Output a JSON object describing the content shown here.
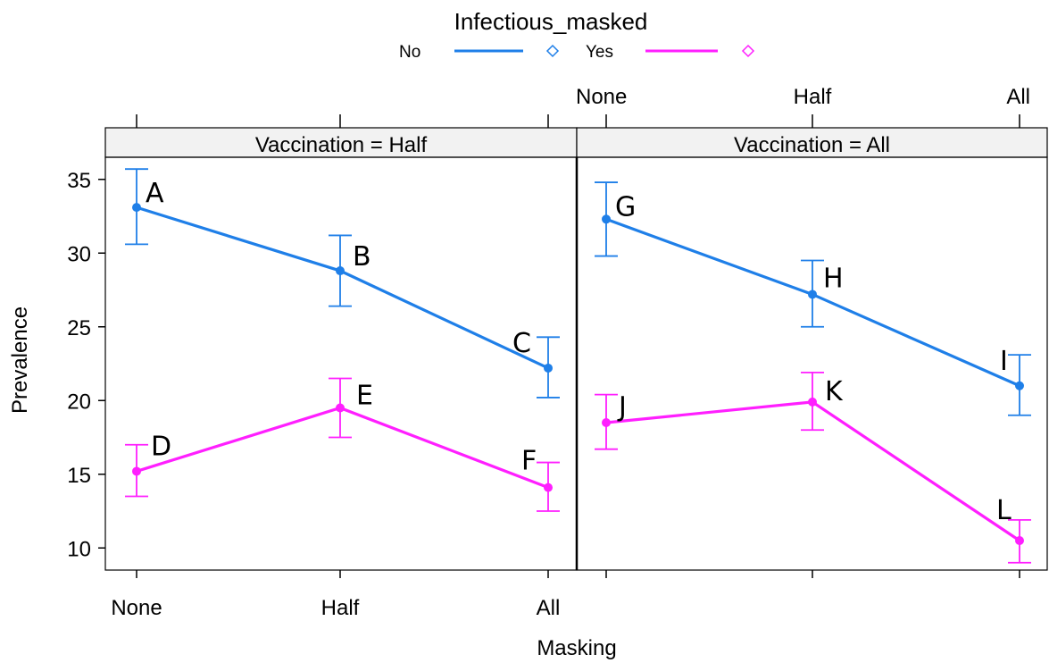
{
  "chart_data": {
    "type": "line",
    "legend": {
      "title": "Infectious_masked",
      "placement": "top",
      "entries": [
        {
          "label": "No",
          "color": "#1f7fe8"
        },
        {
          "label": "Yes",
          "color": "#ff1fff"
        }
      ]
    },
    "xlabel": "Masking",
    "ylabel": "Prevalence",
    "categories": [
      "None",
      "Half",
      "All"
    ],
    "ylim": [
      8.5,
      36.5
    ],
    "yticks": [
      10,
      15,
      20,
      25,
      30,
      35
    ],
    "panels": [
      {
        "strip": "Vaccination = Half",
        "series": [
          {
            "name": "No",
            "color": "#1f7fe8",
            "values": [
              33.1,
              28.8,
              22.2
            ],
            "lower": [
              30.6,
              26.4,
              20.2
            ],
            "upper": [
              35.7,
              31.2,
              24.3
            ],
            "labels": [
              "A",
              "B",
              "C"
            ]
          },
          {
            "name": "Yes",
            "color": "#ff1fff",
            "values": [
              15.2,
              19.5,
              14.1
            ],
            "lower": [
              13.5,
              17.5,
              12.5
            ],
            "upper": [
              17.0,
              21.5,
              15.8
            ],
            "labels": [
              "D",
              "E",
              "F"
            ]
          }
        ]
      },
      {
        "strip": "Vaccination = All",
        "series": [
          {
            "name": "No",
            "color": "#1f7fe8",
            "values": [
              32.3,
              27.2,
              21.0
            ],
            "lower": [
              29.8,
              25.0,
              19.0
            ],
            "upper": [
              34.8,
              29.5,
              23.1
            ],
            "labels": [
              "G",
              "H",
              "I"
            ]
          },
          {
            "name": "Yes",
            "color": "#ff1fff",
            "values": [
              18.5,
              19.9,
              10.5
            ],
            "lower": [
              16.7,
              18.0,
              9.0
            ],
            "upper": [
              20.4,
              21.9,
              11.9
            ],
            "labels": [
              "J",
              "K",
              "L"
            ]
          }
        ]
      }
    ]
  }
}
